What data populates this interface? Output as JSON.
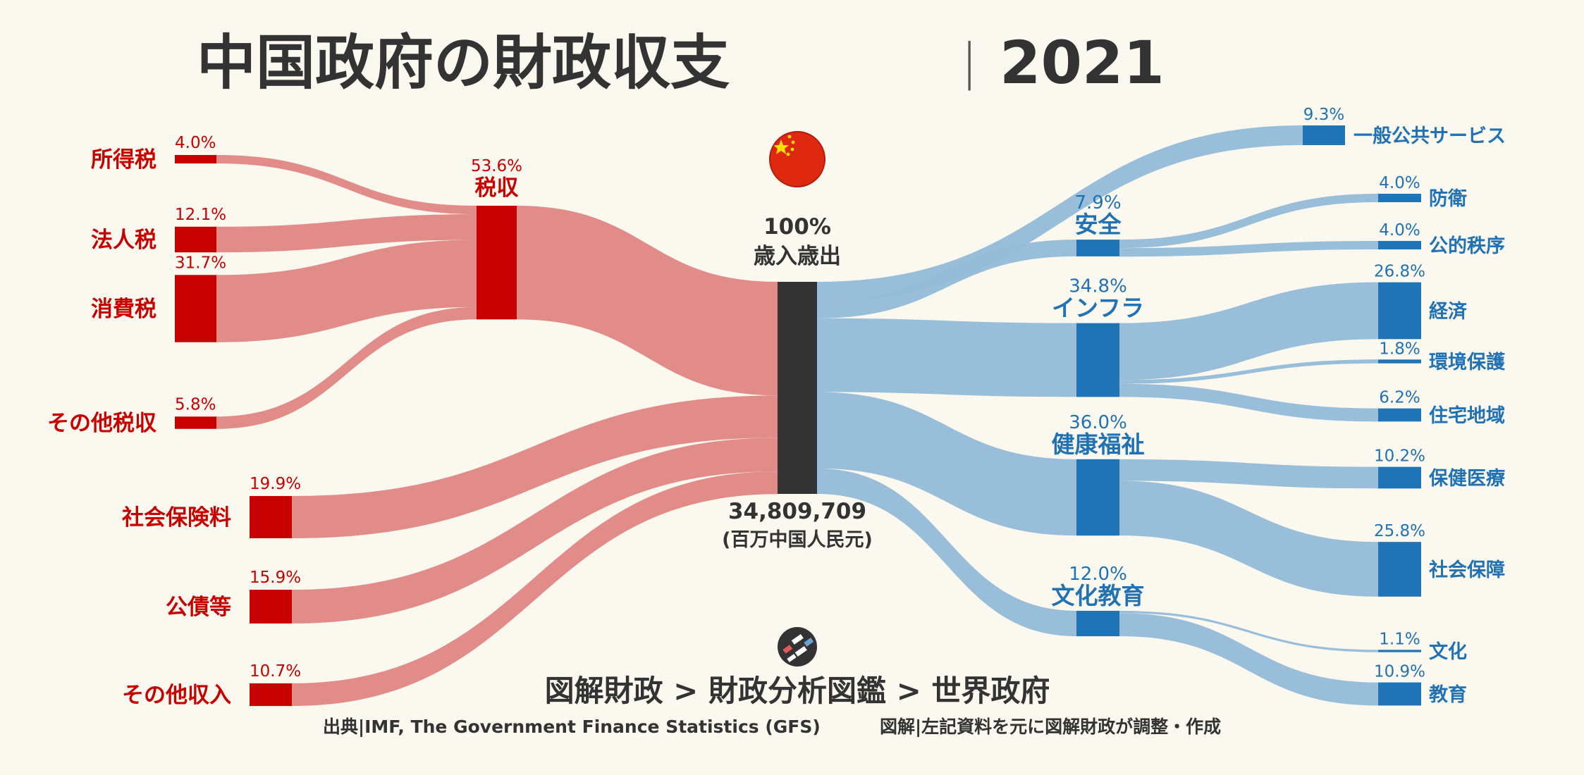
{
  "title": "中国政府の財政収支",
  "title_sep": "|",
  "year": "2021",
  "center": {
    "label_pct": "100%",
    "label_name": "歳入歳出",
    "total": "34,809,709",
    "unit": "(百万中国人民元)"
  },
  "footer": {
    "breadcrumb": "図解財政 > 財政分析図鑑 > 世界政府",
    "source": "出典|IMF, The Government Finance Statistics (GFS)",
    "credit": "図解|左記資料を元に図解財政が調整・作成"
  },
  "colors": {
    "revenue_node": "#c70000",
    "revenue_flow": "#e08683",
    "expense_node": "#1f74b5",
    "expense_flow": "#94bbd7",
    "center_node": "#333333",
    "background": "#faf8ef",
    "flag": "#de2910",
    "flag_star": "#ffde00"
  },
  "icons": {
    "flag": "china-flag-icon",
    "logo": "zukai-zaisei-logo-icon"
  },
  "chart_data": {
    "type": "sankey",
    "title": "中国政府の財政収支|2021",
    "total": 34809709,
    "unit": "百万中国人民元",
    "revenue": {
      "tax_group": {
        "name": "税収",
        "pct_label": "53.6%",
        "value": 53.6,
        "items": [
          {
            "name": "所得税",
            "pct_label": "4.0%",
            "value": 4.0
          },
          {
            "name": "法人税",
            "pct_label": "12.1%",
            "value": 12.1
          },
          {
            "name": "消費税",
            "pct_label": "31.7%",
            "value": 31.7
          },
          {
            "name": "その他税収",
            "pct_label": "5.8%",
            "value": 5.8
          }
        ]
      },
      "others": [
        {
          "name": "社会保険料",
          "pct_label": "19.9%",
          "value": 19.9
        },
        {
          "name": "公債等",
          "pct_label": "15.9%",
          "value": 15.9
        },
        {
          "name": "その他収入",
          "pct_label": "10.7%",
          "value": 10.7
        }
      ]
    },
    "expenditure": [
      {
        "name": "一般公共サービス",
        "pct_label": "9.3%",
        "value": 9.3,
        "items": []
      },
      {
        "name": "安全",
        "pct_label": "7.9%",
        "value": 7.9,
        "items": [
          {
            "name": "防衛",
            "pct_label": "4.0%",
            "value": 4.0
          },
          {
            "name": "公的秩序",
            "pct_label": "4.0%",
            "value": 4.0
          }
        ]
      },
      {
        "name": "インフラ",
        "pct_label": "34.8%",
        "value": 34.8,
        "items": [
          {
            "name": "経済",
            "pct_label": "26.8%",
            "value": 26.8
          },
          {
            "name": "環境保護",
            "pct_label": "1.8%",
            "value": 1.8
          },
          {
            "name": "住宅地域",
            "pct_label": "6.2%",
            "value": 6.2
          }
        ]
      },
      {
        "name": "健康福祉",
        "pct_label": "36.0%",
        "value": 36.0,
        "items": [
          {
            "name": "保健医療",
            "pct_label": "10.2%",
            "value": 10.2
          },
          {
            "name": "社会保障",
            "pct_label": "25.8%",
            "value": 25.8
          }
        ]
      },
      {
        "name": "文化教育",
        "pct_label": "12.0%",
        "value": 12.0,
        "items": [
          {
            "name": "文化",
            "pct_label": "1.1%",
            "value": 1.1
          },
          {
            "name": "教育",
            "pct_label": "10.9%",
            "value": 10.9
          }
        ]
      }
    ]
  }
}
